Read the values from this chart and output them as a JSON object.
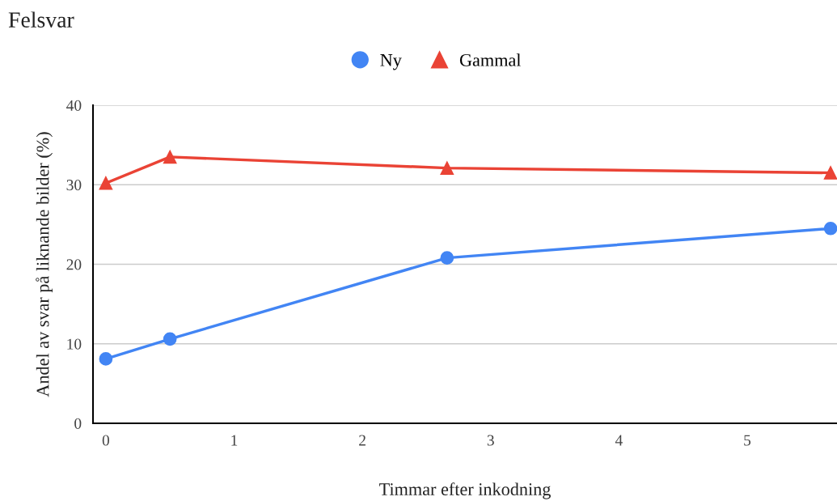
{
  "chart_data": {
    "type": "line",
    "title": "Felsvar",
    "xlabel": "Timmar efter inkodning",
    "ylabel": "Andel av svar på liknande bilder (%)",
    "series": [
      {
        "name": "Ny",
        "color": "#4285f4",
        "marker": "circle",
        "x": [
          0,
          0.5,
          2.66,
          5.65
        ],
        "values": [
          8.1,
          10.6,
          20.8,
          24.5
        ]
      },
      {
        "name": "Gammal",
        "color": "#ea4335",
        "marker": "triangle",
        "x": [
          0,
          0.5,
          2.66,
          5.65
        ],
        "values": [
          30.2,
          33.5,
          32.1,
          31.5
        ]
      }
    ],
    "xlim": [
      -0.1,
      5.7
    ],
    "xticks": [
      0,
      1,
      2,
      3,
      4,
      5
    ],
    "ylim": [
      0,
      40
    ],
    "yticks": [
      0,
      10,
      20,
      30,
      40
    ],
    "grid": "y",
    "legend": "top",
    "line_style": "solid"
  }
}
